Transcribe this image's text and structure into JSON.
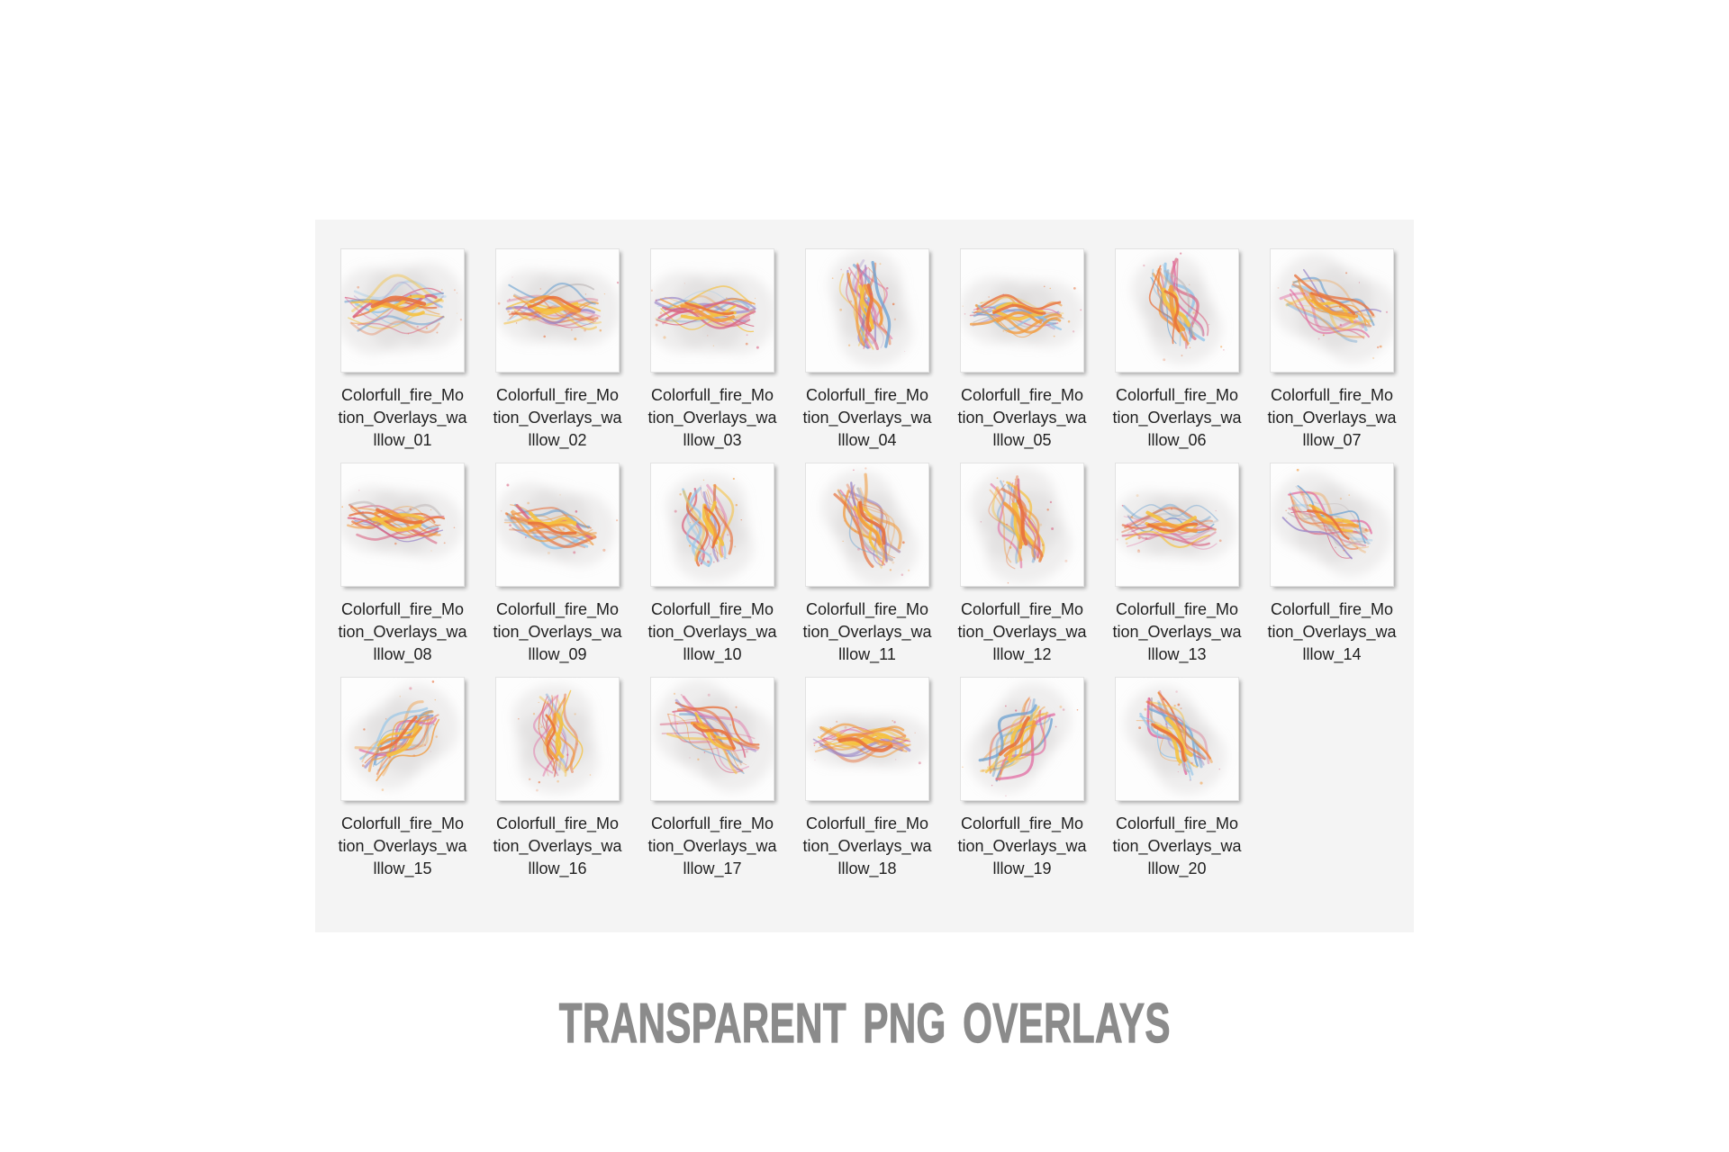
{
  "colors": {
    "page_bg": "#ffffff",
    "panel_bg": "#f4f4f4",
    "caption_text": "#1f1f1f",
    "heading_text": "#8b8b8b"
  },
  "heading": {
    "text": "TRANSPARENT PNG OVERLAYS"
  },
  "art": {
    "palette": [
      "#f6c13e",
      "#f29b3e",
      "#e8713c",
      "#e2679f",
      "#d95f7e",
      "#6ea3d2",
      "#8fc3e8",
      "#9a86c8",
      "#bdb7b7"
    ],
    "smoke_color": "#c9c5c5",
    "speckle_colors": [
      "#f29b3e",
      "#e8713c",
      "#d95f7e"
    ]
  },
  "files": [
    {
      "name": "Colorfull_fire_Motion_Overlays_walllow_01",
      "lines": [
        "Colorfull_fire_Mo",
        "tion_Overlays_wa",
        "lllow_01"
      ]
    },
    {
      "name": "Colorfull_fire_Motion_Overlays_walllow_02",
      "lines": [
        "Colorfull_fire_Mo",
        "tion_Overlays_wa",
        "lllow_02"
      ]
    },
    {
      "name": "Colorfull_fire_Motion_Overlays_walllow_03",
      "lines": [
        "Colorfull_fire_Mo",
        "tion_Overlays_wa",
        "lllow_03"
      ]
    },
    {
      "name": "Colorfull_fire_Motion_Overlays_walllow_04",
      "lines": [
        "Colorfull_fire_Mo",
        "tion_Overlays_wa",
        "lllow_04"
      ]
    },
    {
      "name": "Colorfull_fire_Motion_Overlays_walllow_05",
      "lines": [
        "Colorfull_fire_Mo",
        "tion_Overlays_wa",
        "lllow_05"
      ]
    },
    {
      "name": "Colorfull_fire_Motion_Overlays_walllow_06",
      "lines": [
        "Colorfull_fire_Mo",
        "tion_Overlays_wa",
        "lllow_06"
      ]
    },
    {
      "name": "Colorfull_fire_Motion_Overlays_walllow_07",
      "lines": [
        "Colorfull_fire_Mo",
        "tion_Overlays_wa",
        "lllow_07"
      ]
    },
    {
      "name": "Colorfull_fire_Motion_Overlays_walllow_08",
      "lines": [
        "Colorfull_fire_Mo",
        "tion_Overlays_wa",
        "lllow_08"
      ]
    },
    {
      "name": "Colorfull_fire_Motion_Overlays_walllow_09",
      "lines": [
        "Colorfull_fire_Mo",
        "tion_Overlays_wa",
        "lllow_09"
      ]
    },
    {
      "name": "Colorfull_fire_Motion_Overlays_walllow_10",
      "lines": [
        "Colorfull_fire_Mo",
        "tion_Overlays_wa",
        "lllow_10"
      ]
    },
    {
      "name": "Colorfull_fire_Motion_Overlays_walllow_11",
      "lines": [
        "Colorfull_fire_Mo",
        "tion_Overlays_wa",
        "lllow_11"
      ]
    },
    {
      "name": "Colorfull_fire_Motion_Overlays_walllow_12",
      "lines": [
        "Colorfull_fire_Mo",
        "tion_Overlays_wa",
        "lllow_12"
      ]
    },
    {
      "name": "Colorfull_fire_Motion_Overlays_walllow_13",
      "lines": [
        "Colorfull_fire_Mo",
        "tion_Overlays_wa",
        "lllow_13"
      ]
    },
    {
      "name": "Colorfull_fire_Motion_Overlays_walllow_14",
      "lines": [
        "Colorfull_fire_Mo",
        "tion_Overlays_wa",
        "lllow_14"
      ]
    },
    {
      "name": "Colorfull_fire_Motion_Overlays_walllow_15",
      "lines": [
        "Colorfull_fire_Mo",
        "tion_Overlays_wa",
        "lllow_15"
      ]
    },
    {
      "name": "Colorfull_fire_Motion_Overlays_walllow_16",
      "lines": [
        "Colorfull_fire_Mo",
        "tion_Overlays_wa",
        "lllow_16"
      ]
    },
    {
      "name": "Colorfull_fire_Motion_Overlays_walllow_17",
      "lines": [
        "Colorfull_fire_Mo",
        "tion_Overlays_wa",
        "lllow_17"
      ]
    },
    {
      "name": "Colorfull_fire_Motion_Overlays_walllow_18",
      "lines": [
        "Colorfull_fire_Mo",
        "tion_Overlays_wa",
        "lllow_18"
      ]
    },
    {
      "name": "Colorfull_fire_Motion_Overlays_walllow_19",
      "lines": [
        "Colorfull_fire_Mo",
        "tion_Overlays_wa",
        "lllow_19"
      ]
    },
    {
      "name": "Colorfull_fire_Motion_Overlays_walllow_20",
      "lines": [
        "Colorfull_fire_Mo",
        "tion_Overlays_wa",
        "lllow_20"
      ]
    }
  ]
}
